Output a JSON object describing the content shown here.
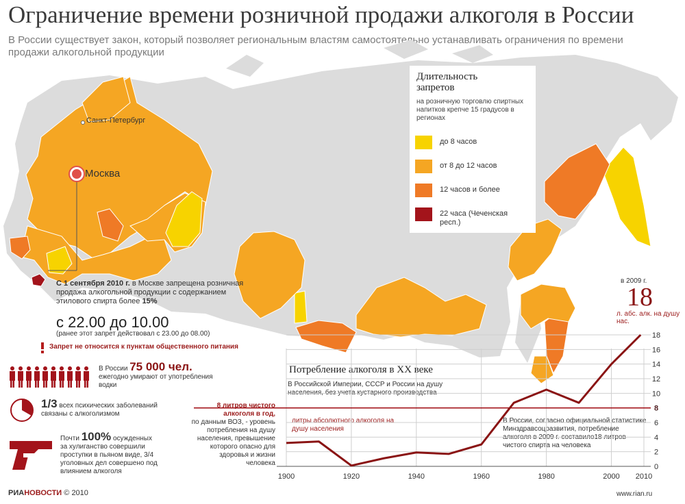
{
  "title": "Ограничение времени розничной продажи алкоголя в России",
  "subtitle": "В России существует закон, который позволяет региональным властям самостоятельно устанавливать ограничения по времени продажи алкогольной продукции",
  "map": {
    "cities": [
      {
        "name": "Санкт-Петербург"
      },
      {
        "name": "Москва"
      }
    ],
    "colors": {
      "land": "#dcdcdc",
      "up_to_8": "#f7d300",
      "8_to_12": "#f5a623",
      "over_12": "#ef7a26",
      "chechnya": "#a3141b"
    }
  },
  "legend": {
    "title": "Длительность запретов",
    "description": "на розничную торговлю спиртных напитков крепче 15 градусов в регионах",
    "items": [
      {
        "label": "до 8 часов",
        "color": "#f7d300"
      },
      {
        "label": "от 8 до 12 часов",
        "color": "#f5a623"
      },
      {
        "label": "12 часов и более",
        "color": "#ef7a26"
      },
      {
        "label": "22 часа (Чеченская респ.)",
        "color": "#a3141b"
      }
    ]
  },
  "moscow_note": {
    "date": "С 1 сентября 2010 г.",
    "text_a": "в Москве запрещена розничная продажа алкогольной продукции с содержанием этилового спирта более",
    "percent": "15%",
    "time": "с 22.00 до 10.00",
    "previous": "(ранее этот запрет действовал с 23.00 до 08.00)",
    "warning": "Запрет не относится к пунктам общественного питания"
  },
  "stats": {
    "deaths_prefix": "В России",
    "deaths_big": "75 000 чел.",
    "deaths_text": "ежегодно умирают от употребления водки",
    "mental_big": "1/3",
    "mental_text_a": "всех психических заболеваний",
    "mental_text_b": "связаны с алкоголизмом",
    "convicts_prefix": "Почти",
    "convicts_big": "100%",
    "convicts_text_a": "осужденных",
    "convicts_text_b": "за хулиганство совершили проступки в пьяном виде, 3/4 уголовных дел совершено под влиянием алкоголя"
  },
  "who": {
    "title": "8 литров чистого алкоголя в год,",
    "text": "по данным ВОЗ, - уровень потребления на душу населения, превышение которого опасно для здоровья и жизни человека"
  },
  "stat2009": {
    "text": "В России, согласно официальной статистике Минздравсоцразвития, потребление алкоголя в 2009 г. составило18 литров чистого спирта на человека"
  },
  "headline_value": {
    "year": "в 2009 г.",
    "value": "18",
    "unit": "л. абс. алк. на душу нас."
  },
  "chart_data": {
    "type": "line",
    "title": "Потребление алкоголя в XX веке",
    "subtitle": "В Российской Империи, СССР и России на душу населения, без учета кустарного производства",
    "ylabel": "литры абсолютного алкоголя на душу населения",
    "x": [
      1900,
      1910,
      1920,
      1930,
      1940,
      1950,
      1960,
      1970,
      1980,
      1990,
      2000,
      2009
    ],
    "values": [
      3.2,
      3.4,
      0.1,
      1.1,
      1.9,
      1.7,
      3.0,
      8.7,
      10.5,
      8.7,
      14.0,
      18.0
    ],
    "threshold": 8,
    "threshold_label": "8",
    "xticks": [
      "1900",
      "1920",
      "1940",
      "1960",
      "1980",
      "2000",
      "2010"
    ],
    "yticks": [
      "0",
      "2",
      "4",
      "6",
      "8",
      "10",
      "12",
      "14",
      "16",
      "18"
    ],
    "xlim": [
      1900,
      2010
    ],
    "ylim": [
      0,
      18
    ],
    "line_color": "#8a1414",
    "grid": true
  },
  "footer": {
    "logo_a": "РИА",
    "logo_b": "НОВОСТИ",
    "copyright": "© 2010",
    "url": "www.rian.ru"
  }
}
